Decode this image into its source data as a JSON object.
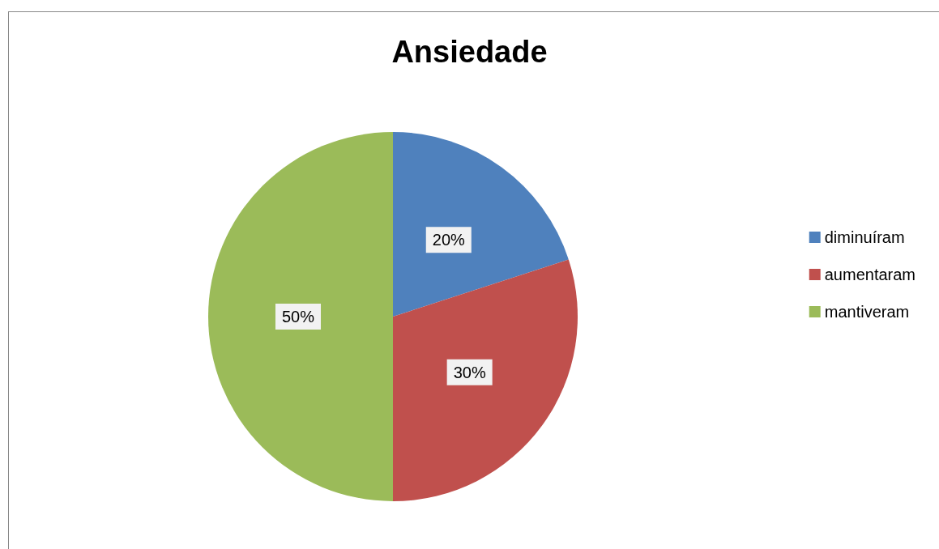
{
  "chart_data": {
    "type": "pie",
    "title": "Ansiedade",
    "categories": [
      "diminuíram",
      "aumentaram",
      "mantiveram"
    ],
    "values": [
      20,
      30,
      50
    ],
    "colors": [
      "#4f81bd",
      "#c0504d",
      "#9bbb59"
    ],
    "value_labels": [
      "20%",
      "30%",
      "50%"
    ],
    "legend": "right"
  }
}
